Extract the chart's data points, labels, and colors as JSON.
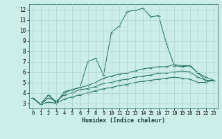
{
  "xlabel": "Humidex (Indice chaleur)",
  "bg_color": "#cceee8",
  "grid_color": "#aad4ce",
  "line_color": "#1a6b5a",
  "xlim": [
    -0.5,
    23.5
  ],
  "ylim": [
    2.5,
    12.5
  ],
  "xticks": [
    0,
    1,
    2,
    3,
    4,
    5,
    6,
    7,
    8,
    9,
    10,
    11,
    12,
    13,
    14,
    15,
    16,
    17,
    18,
    19,
    20,
    21,
    22,
    23
  ],
  "yticks": [
    3,
    4,
    5,
    6,
    7,
    8,
    9,
    10,
    11,
    12
  ],
  "series": [
    [
      3.5,
      2.9,
      3.8,
      3.0,
      4.1,
      4.3,
      4.5,
      7.0,
      7.3,
      5.7,
      9.8,
      10.4,
      11.8,
      11.9,
      12.1,
      11.3,
      11.4,
      8.7,
      6.6,
      6.5,
      6.6,
      5.9,
      5.2,
      5.2
    ],
    [
      3.5,
      2.9,
      3.8,
      3.1,
      4.0,
      4.3,
      4.5,
      4.7,
      5.0,
      5.4,
      5.6,
      5.8,
      5.9,
      6.1,
      6.3,
      6.4,
      6.5,
      6.5,
      6.7,
      6.6,
      6.6,
      5.9,
      5.5,
      5.2
    ],
    [
      3.5,
      2.9,
      3.5,
      3.2,
      3.8,
      4.0,
      4.3,
      4.4,
      4.6,
      4.9,
      5.0,
      5.2,
      5.3,
      5.5,
      5.6,
      5.7,
      5.9,
      5.9,
      6.0,
      6.1,
      6.0,
      5.5,
      5.2,
      5.2
    ],
    [
      3.5,
      2.9,
      3.1,
      3.0,
      3.4,
      3.6,
      3.8,
      4.0,
      4.2,
      4.4,
      4.5,
      4.7,
      4.8,
      5.0,
      5.1,
      5.2,
      5.3,
      5.4,
      5.5,
      5.4,
      5.3,
      5.0,
      5.0,
      5.2
    ]
  ]
}
